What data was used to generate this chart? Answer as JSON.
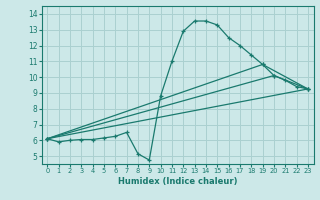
{
  "title": "",
  "xlabel": "Humidex (Indice chaleur)",
  "ylabel": "",
  "bg_color": "#cce8e8",
  "grid_color": "#aad0d0",
  "line_color": "#1a7a6e",
  "xlim": [
    -0.5,
    23.5
  ],
  "ylim": [
    4.5,
    14.5
  ],
  "xticks": [
    0,
    1,
    2,
    3,
    4,
    5,
    6,
    7,
    8,
    9,
    10,
    11,
    12,
    13,
    14,
    15,
    16,
    17,
    18,
    19,
    20,
    21,
    22,
    23
  ],
  "yticks": [
    5,
    6,
    7,
    8,
    9,
    10,
    11,
    12,
    13,
    14
  ],
  "lines": [
    {
      "x": [
        0,
        1,
        2,
        3,
        4,
        5,
        6,
        7,
        8,
        9,
        10,
        11,
        12,
        13,
        14,
        15,
        16,
        17,
        18,
        19,
        20,
        21,
        22,
        23
      ],
      "y": [
        6.1,
        5.9,
        6.0,
        6.05,
        6.05,
        6.15,
        6.25,
        6.5,
        5.15,
        4.75,
        8.8,
        11.0,
        12.9,
        13.55,
        13.55,
        13.3,
        12.5,
        12.0,
        11.4,
        10.8,
        10.1,
        9.8,
        9.4,
        9.25
      ],
      "marker": "+"
    },
    {
      "x": [
        0,
        23
      ],
      "y": [
        6.1,
        9.25
      ],
      "marker": null
    },
    {
      "x": [
        0,
        20,
        23
      ],
      "y": [
        6.1,
        10.1,
        9.25
      ],
      "marker": "+"
    },
    {
      "x": [
        0,
        19,
        23
      ],
      "y": [
        6.1,
        10.8,
        9.25
      ],
      "marker": "+"
    }
  ]
}
